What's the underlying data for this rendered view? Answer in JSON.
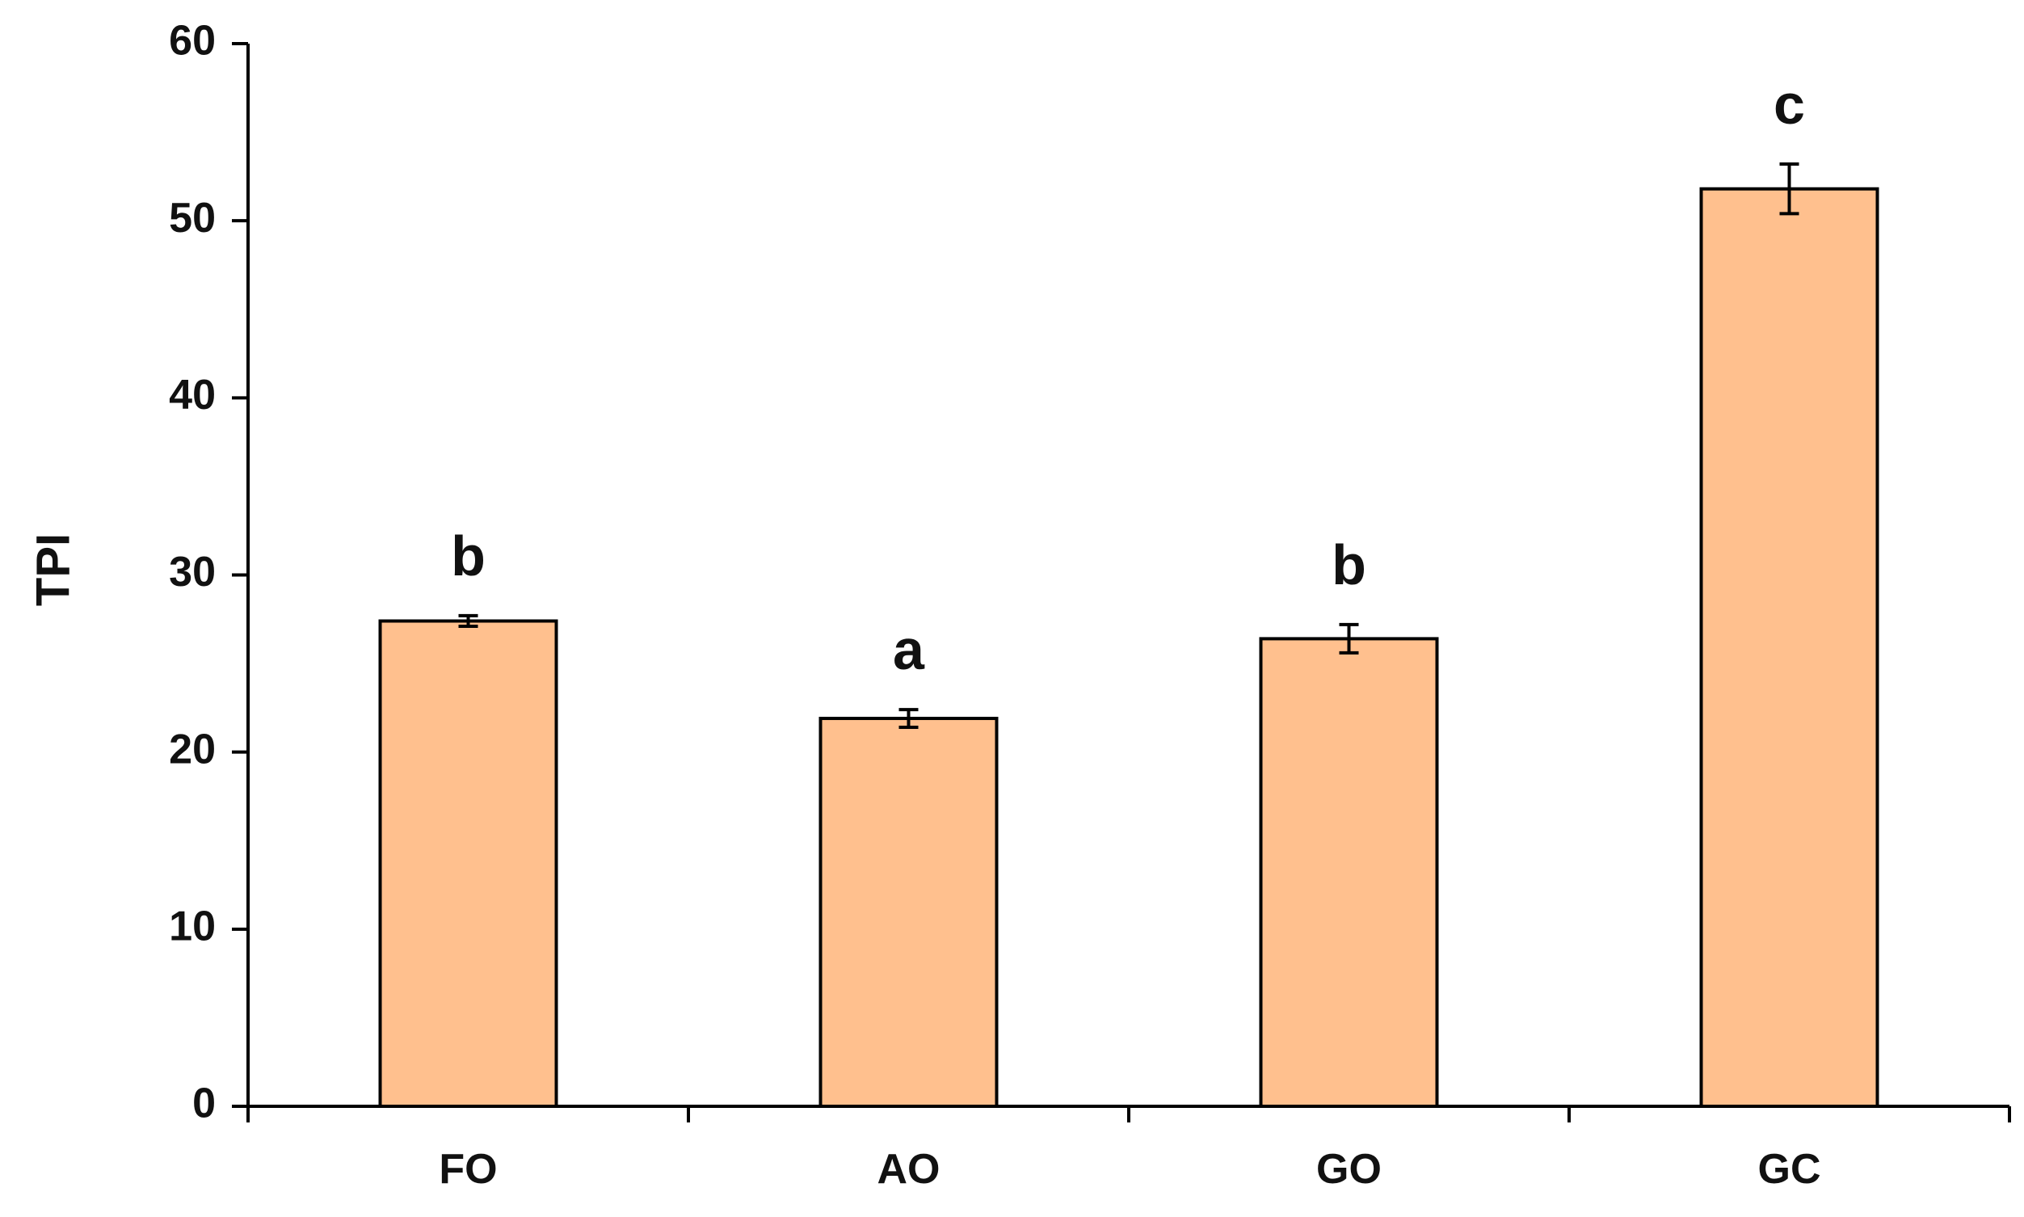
{
  "chart_data": {
    "type": "bar",
    "title": "",
    "xlabel": "",
    "ylabel": "TPI",
    "ylim": [
      0,
      60
    ],
    "yticks": [
      0,
      10,
      20,
      30,
      40,
      50,
      60
    ],
    "categories": [
      "FO",
      "AO",
      "GO",
      "GC"
    ],
    "values": [
      27.4,
      21.9,
      26.4,
      51.8
    ],
    "errors": [
      0.3,
      0.5,
      0.8,
      1.4
    ],
    "significance_letters": [
      "b",
      "a",
      "b",
      "c"
    ],
    "bar_color": "#FFC08E",
    "bar_edge_color": "#000000",
    "grid": false,
    "legend": "none"
  }
}
